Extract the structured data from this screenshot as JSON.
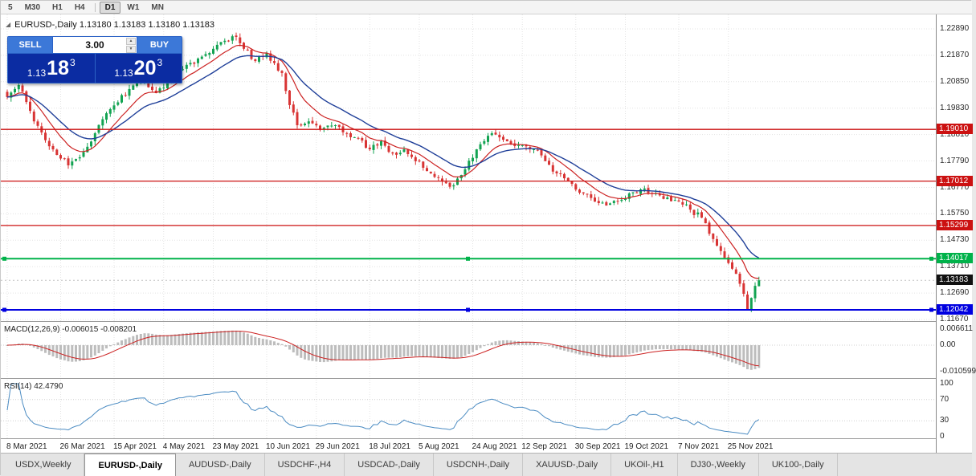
{
  "toolbar": {
    "timeframes": [
      {
        "label": "5",
        "active": false
      },
      {
        "label": "M30",
        "active": false
      },
      {
        "label": "H1",
        "active": false
      },
      {
        "label": "H4",
        "active": false
      },
      {
        "label": "D1",
        "active": true
      },
      {
        "label": "W1",
        "active": false
      },
      {
        "label": "MN",
        "active": false
      }
    ]
  },
  "chart_header": {
    "title": "EURUSD-,Daily 1.13180 1.13183 1.13180 1.13183"
  },
  "trade_panel": {
    "sell_label": "SELL",
    "buy_label": "BUY",
    "volume": "3.00",
    "sell_price_prefix": "1.13",
    "sell_price_big": "18",
    "sell_price_sup": "3",
    "buy_price_prefix": "1.13",
    "buy_price_big": "20",
    "buy_price_sup": "3"
  },
  "price_axis": {
    "labels": [
      "1.22890",
      "1.21870",
      "1.20850",
      "1.19830",
      "1.18810",
      "1.17790",
      "1.16770",
      "1.15750",
      "1.14730",
      "1.13710",
      "1.12690",
      "1.11670"
    ]
  },
  "levels": [
    {
      "price": 1.1901,
      "label": "1.19010",
      "color": "#cc1111",
      "width": 1.3,
      "handles": false
    },
    {
      "price": 1.17012,
      "label": "1.17012",
      "color": "#cc1111",
      "width": 1.3,
      "handles": false
    },
    {
      "price": 1.15299,
      "label": "1.15299",
      "color": "#cc1111",
      "width": 1.3,
      "handles": false
    },
    {
      "price": 1.14017,
      "label": "1.14017",
      "color": "#00b24a",
      "width": 2,
      "handles": true
    },
    {
      "price": 1.12042,
      "label": "1.12042",
      "color": "#0000e0",
      "width": 2,
      "handles": true
    }
  ],
  "current_price": {
    "value": 1.13183,
    "label": "1.13183",
    "tag_color": "#111111"
  },
  "macd_panel": {
    "label": "MACD(12,26,9) -0.006015 -0.008201",
    "axis_labels": [
      {
        "value": 0.006611,
        "text": "0.006611"
      },
      {
        "value": 0,
        "text": "0.00"
      },
      {
        "value": -0.010599,
        "text": "-0.010599"
      }
    ]
  },
  "rsi_panel": {
    "label": "RSI(14) 42.4790",
    "axis_labels": [
      {
        "value": 100,
        "text": "100"
      },
      {
        "value": 70,
        "text": "70"
      },
      {
        "value": 30,
        "text": "30"
      },
      {
        "value": 0,
        "text": "0"
      }
    ],
    "level_lines": [
      70,
      30
    ]
  },
  "date_axis": {
    "labels": [
      {
        "day": 0,
        "text": "8 Mar 2021"
      },
      {
        "day": 14,
        "text": "26 Mar 2021"
      },
      {
        "day": 28,
        "text": "15 Apr 2021"
      },
      {
        "day": 41,
        "text": "4 May 2021"
      },
      {
        "day": 54,
        "text": "23 May 2021"
      },
      {
        "day": 68,
        "text": "10 Jun 2021"
      },
      {
        "day": 81,
        "text": "29 Jun 2021"
      },
      {
        "day": 95,
        "text": "18 Jul 2021"
      },
      {
        "day": 108,
        "text": "5 Aug 2021"
      },
      {
        "day": 122,
        "text": "24 Aug 2021"
      },
      {
        "day": 135,
        "text": "12 Sep 2021"
      },
      {
        "day": 149,
        "text": "30 Sep 2021"
      },
      {
        "day": 162,
        "text": "19 Oct 2021"
      },
      {
        "day": 176,
        "text": "7 Nov 2021"
      },
      {
        "day": 189,
        "text": "25 Nov 2021"
      }
    ]
  },
  "tabs": [
    {
      "label": "USDX,Weekly",
      "active": false
    },
    {
      "label": "EURUSD-,Daily",
      "active": true
    },
    {
      "label": "AUDUSD-,Daily",
      "active": false
    },
    {
      "label": "USDCHF-,H4",
      "active": false
    },
    {
      "label": "USDCAD-,Daily",
      "active": false
    },
    {
      "label": "USDCNH-,Daily",
      "active": false
    },
    {
      "label": "XAUUSD-,Daily",
      "active": false
    },
    {
      "label": "UKOil-,H1",
      "active": false
    },
    {
      "label": "DJ30-,Weekly",
      "active": false
    },
    {
      "label": "UK100-,Daily",
      "active": false
    }
  ],
  "chart_data": {
    "type": "candlestick",
    "symbol": "EURUSD-",
    "timeframe": "Daily",
    "title": "EURUSD-,Daily",
    "bid": 1.13183,
    "ask": 1.13203,
    "ohlc_current": {
      "open": 1.1318,
      "high": 1.13183,
      "low": 1.1318,
      "close": 1.13183
    },
    "y_axis_top": 1.2289,
    "y_axis_bottom": 1.1167,
    "days_total": 198,
    "up_color": "#12a352",
    "down_color": "#d83434",
    "ma_fast": {
      "period": 10,
      "color": "#cc2222"
    },
    "ma_slow": {
      "period": 21,
      "color": "#1f3f99"
    },
    "indicators": {
      "macd": {
        "fast": 12,
        "slow": 26,
        "signal_period": 9,
        "main_value": -0.006015,
        "signal_value": -0.008201,
        "axis_max": 0.006611,
        "axis_min": -0.010599
      },
      "rsi": {
        "period": 14,
        "value": 42.479
      }
    },
    "price_path": [
      [
        0,
        1.2026
      ],
      [
        3,
        1.2072
      ],
      [
        7,
        1.1932
      ],
      [
        12,
        1.1824
      ],
      [
        16,
        1.1762
      ],
      [
        19,
        1.1793
      ],
      [
        23,
        1.1886
      ],
      [
        27,
        1.1979
      ],
      [
        32,
        1.2057
      ],
      [
        36,
        1.2088
      ],
      [
        39,
        1.2041
      ],
      [
        43,
        1.2103
      ],
      [
        47,
        1.215
      ],
      [
        53,
        1.2196
      ],
      [
        57,
        1.2243
      ],
      [
        60,
        1.2258
      ],
      [
        62,
        1.2212
      ],
      [
        65,
        1.2165
      ],
      [
        68,
        1.2196
      ],
      [
        72,
        1.2119
      ],
      [
        74,
        1.1995
      ],
      [
        76,
        1.1917
      ],
      [
        79,
        1.1932
      ],
      [
        82,
        1.1901
      ],
      [
        86,
        1.1917
      ],
      [
        91,
        1.1871
      ],
      [
        95,
        1.1824
      ],
      [
        98,
        1.1855
      ],
      [
        101,
        1.1808
      ],
      [
        104,
        1.1824
      ],
      [
        107,
        1.1778
      ],
      [
        111,
        1.1731
      ],
      [
        114,
        1.17
      ],
      [
        117,
        1.1685
      ],
      [
        120,
        1.1747
      ],
      [
        123,
        1.1824
      ],
      [
        127,
        1.1886
      ],
      [
        131,
        1.1855
      ],
      [
        135,
        1.184
      ],
      [
        138,
        1.1824
      ],
      [
        141,
        1.1778
      ],
      [
        144,
        1.1731
      ],
      [
        147,
        1.17
      ],
      [
        151,
        1.1654
      ],
      [
        154,
        1.1622
      ],
      [
        157,
        1.1607
      ],
      [
        160,
        1.1622
      ],
      [
        163,
        1.1654
      ],
      [
        166,
        1.1669
      ],
      [
        169,
        1.1654
      ],
      [
        173,
        1.1638
      ],
      [
        176,
        1.1622
      ],
      [
        179,
        1.1591
      ],
      [
        182,
        1.156
      ],
      [
        184,
        1.1498
      ],
      [
        186,
        1.1452
      ],
      [
        188,
        1.1405
      ],
      [
        191,
        1.1343
      ],
      [
        193,
        1.1266
      ],
      [
        194,
        1.1204
      ],
      [
        195,
        1.125
      ],
      [
        196,
        1.1297
      ],
      [
        197,
        1.13183
      ]
    ]
  }
}
